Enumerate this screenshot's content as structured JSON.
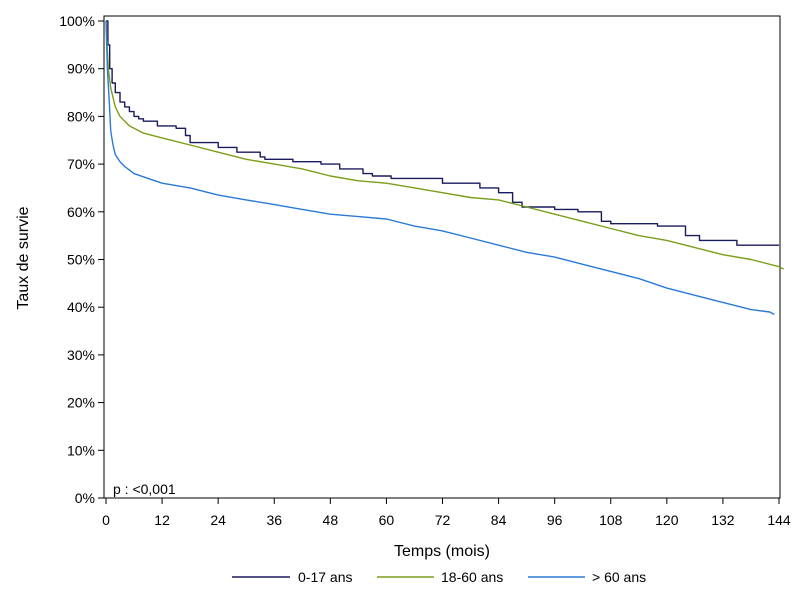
{
  "chart_data": {
    "type": "line",
    "title": "",
    "xlabel": "Temps (mois)",
    "ylabel": "Taux de survie",
    "xlim": [
      0,
      144
    ],
    "ylim": [
      0,
      100
    ],
    "x_ticks": [
      0,
      12,
      24,
      36,
      48,
      60,
      72,
      84,
      96,
      108,
      120,
      132,
      144
    ],
    "y_ticks": [
      0,
      10,
      20,
      30,
      40,
      50,
      60,
      70,
      80,
      90,
      100
    ],
    "y_tick_labels": [
      "0%",
      "10%",
      "20%",
      "30%",
      "40%",
      "50%",
      "60%",
      "70%",
      "80%",
      "90%",
      "100%"
    ],
    "grid": false,
    "legend_position": "bottom",
    "annotation": "p : <0,001",
    "series": [
      {
        "name": "0-17 ans",
        "color": "#1a1a5e",
        "step": true,
        "points": [
          [
            0,
            100
          ],
          [
            0.4,
            95
          ],
          [
            0.8,
            90
          ],
          [
            1.3,
            87
          ],
          [
            2,
            85
          ],
          [
            3,
            83
          ],
          [
            4,
            82
          ],
          [
            5,
            81
          ],
          [
            6,
            80
          ],
          [
            7,
            79.5
          ],
          [
            8,
            79
          ],
          [
            11,
            78
          ],
          [
            15,
            77.5
          ],
          [
            17,
            76
          ],
          [
            18,
            74.5
          ],
          [
            24,
            73.5
          ],
          [
            28,
            72.5
          ],
          [
            33,
            71.5
          ],
          [
            34,
            71
          ],
          [
            40,
            70.5
          ],
          [
            46,
            70
          ],
          [
            50,
            69
          ],
          [
            55,
            68
          ],
          [
            57,
            67.5
          ],
          [
            61,
            67
          ],
          [
            72,
            66
          ],
          [
            80,
            65
          ],
          [
            84,
            64
          ],
          [
            87,
            62
          ],
          [
            89,
            61
          ],
          [
            96,
            60.5
          ],
          [
            101,
            60
          ],
          [
            106,
            58
          ],
          [
            108,
            57.5
          ],
          [
            118,
            57
          ],
          [
            124,
            55
          ],
          [
            127,
            54
          ],
          [
            135,
            53
          ],
          [
            144,
            53
          ]
        ]
      },
      {
        "name": "18-60 ans",
        "color": "#7a9e1a",
        "step": false,
        "points": [
          [
            0,
            100
          ],
          [
            0.5,
            90
          ],
          [
            1,
            86
          ],
          [
            2,
            82
          ],
          [
            3,
            80
          ],
          [
            5,
            78
          ],
          [
            8,
            76.5
          ],
          [
            12,
            75.5
          ],
          [
            18,
            74
          ],
          [
            24,
            72.5
          ],
          [
            30,
            71
          ],
          [
            36,
            70
          ],
          [
            42,
            69
          ],
          [
            48,
            67.5
          ],
          [
            54,
            66.5
          ],
          [
            60,
            66
          ],
          [
            66,
            65
          ],
          [
            72,
            64
          ],
          [
            78,
            63
          ],
          [
            84,
            62.5
          ],
          [
            90,
            61
          ],
          [
            96,
            59.5
          ],
          [
            102,
            58
          ],
          [
            108,
            56.5
          ],
          [
            114,
            55
          ],
          [
            120,
            54
          ],
          [
            126,
            52.5
          ],
          [
            132,
            51
          ],
          [
            138,
            50
          ],
          [
            144,
            48.5
          ],
          [
            145,
            48
          ]
        ]
      },
      {
        "name": "> 60 ans",
        "color": "#2a7ad6",
        "step": false,
        "points": [
          [
            0,
            100
          ],
          [
            0.3,
            90
          ],
          [
            0.7,
            83
          ],
          [
            1,
            77
          ],
          [
            1.5,
            74
          ],
          [
            2,
            72
          ],
          [
            3,
            70.5
          ],
          [
            4,
            69.5
          ],
          [
            6,
            68
          ],
          [
            9,
            67
          ],
          [
            12,
            66
          ],
          [
            18,
            65
          ],
          [
            24,
            63.5
          ],
          [
            30,
            62.5
          ],
          [
            36,
            61.5
          ],
          [
            42,
            60.5
          ],
          [
            48,
            59.5
          ],
          [
            54,
            59
          ],
          [
            60,
            58.5
          ],
          [
            66,
            57
          ],
          [
            72,
            56
          ],
          [
            78,
            54.5
          ],
          [
            84,
            53
          ],
          [
            90,
            51.5
          ],
          [
            96,
            50.5
          ],
          [
            102,
            49
          ],
          [
            108,
            47.5
          ],
          [
            114,
            46
          ],
          [
            120,
            44
          ],
          [
            126,
            42.5
          ],
          [
            132,
            41
          ],
          [
            138,
            39.5
          ],
          [
            142,
            39
          ],
          [
            143,
            38.5
          ]
        ]
      }
    ]
  }
}
